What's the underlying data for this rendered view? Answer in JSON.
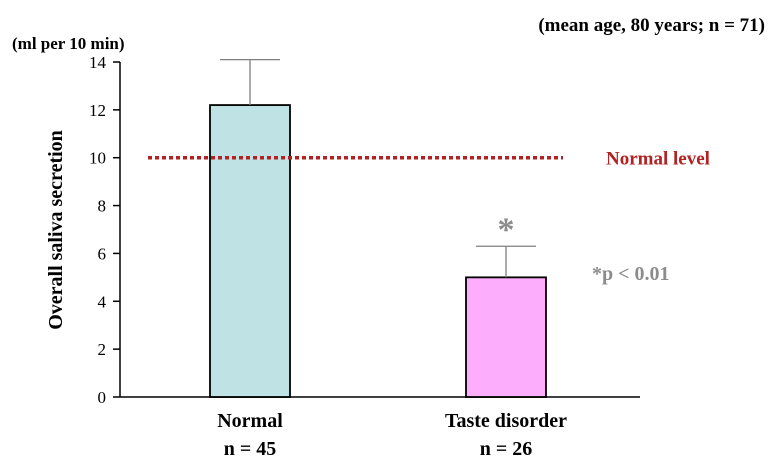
{
  "chart_data": {
    "type": "bar",
    "annotation_top": "(mean age, 80 years; n = 71)",
    "unit_label": "(ml per 10 min)",
    "ylabel": "Overall  saliva  secretion",
    "ylim": [
      0,
      14
    ],
    "yticks": [
      "0",
      "2",
      "4",
      "6",
      "8",
      "10",
      "12",
      "14"
    ],
    "categories": [
      {
        "name": "Normal",
        "n_label": "n = 45"
      },
      {
        "name": "Taste disorder",
        "n_label": "n = 26"
      }
    ],
    "values": [
      12.2,
      5.0
    ],
    "error_upper": [
      14.1,
      6.3
    ],
    "bar_colors": [
      "#bfe2e4",
      "#fcaefc"
    ],
    "reference_line": {
      "value": 10,
      "label": "Normal  level",
      "color": "#b22222"
    },
    "significance": {
      "marker": "*",
      "note": "*p < 0.01",
      "color": "#8c8c8c"
    }
  }
}
